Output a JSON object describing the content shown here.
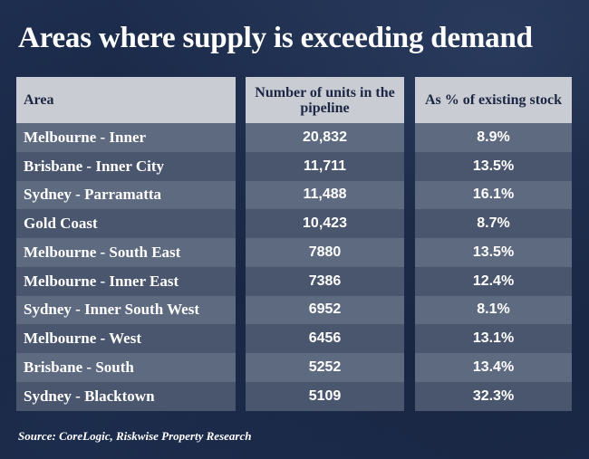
{
  "chart_data": {
    "type": "table",
    "title": "Areas where supply is exceeding demand",
    "columns": [
      "Area",
      "Number of units in the pipeline",
      "As % of existing stock"
    ],
    "rows": [
      {
        "area": "Melbourne - Inner",
        "units": "20,832",
        "pct": "8.9%"
      },
      {
        "area": "Brisbane - Inner City",
        "units": "11,711",
        "pct": "13.5%"
      },
      {
        "area": "Sydney - Parramatta",
        "units": "11,488",
        "pct": "16.1%"
      },
      {
        "area": "Gold Coast",
        "units": "10,423",
        "pct": "8.7%"
      },
      {
        "area": "Melbourne - South East",
        "units": "7880",
        "pct": "13.5%"
      },
      {
        "area": "Melbourne - Inner East",
        "units": "7386",
        "pct": "12.4%"
      },
      {
        "area": "Sydney - Inner South West",
        "units": "6952",
        "pct": "8.1%"
      },
      {
        "area": "Melbourne - West",
        "units": "6456",
        "pct": "13.1%"
      },
      {
        "area": "Brisbane - South",
        "units": "5252",
        "pct": "13.4%"
      },
      {
        "area": "Sydney - Blacktown",
        "units": "5109",
        "pct": "32.3%"
      }
    ],
    "source": "Source: CoreLogic, Riskwise Property Research"
  },
  "colors": {
    "background": "#1c2b4a",
    "header": "#c9ccd2",
    "row_light": "#5e6a80",
    "row_dark": "#4a566d"
  }
}
